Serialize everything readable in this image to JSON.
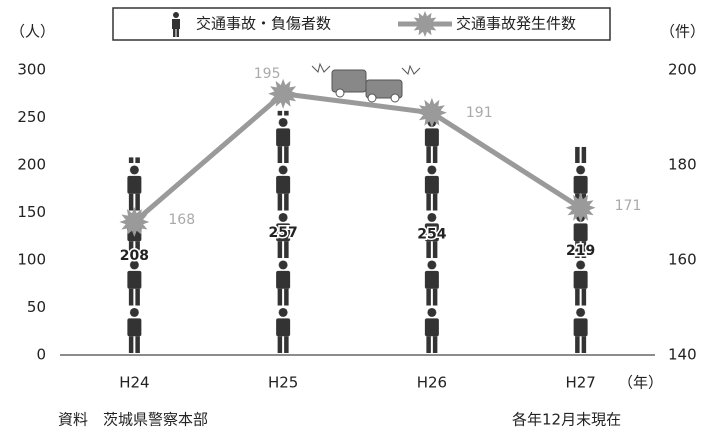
{
  "chart_data": {
    "type": "combo",
    "categories": [
      "H24",
      "H25",
      "H26",
      "H27"
    ],
    "series": [
      {
        "name": "交通事故・負傷者数",
        "type": "pictograph",
        "color": "#333333",
        "values": [
          208,
          257,
          254,
          219
        ]
      },
      {
        "name": "交通事故発生件数",
        "type": "line",
        "axis": "y2",
        "color": "#9a9a9a",
        "values": [
          168,
          195,
          191,
          171
        ]
      }
    ],
    "ylim": [
      0,
      300
    ],
    "yticks": [
      0,
      50,
      100,
      150,
      200,
      250,
      300
    ],
    "y2lim": [
      140,
      200
    ],
    "y2ticks": [
      140,
      160,
      180,
      200
    ],
    "y_label": "（人）",
    "y2_label": "（件）",
    "x_label": "（年）",
    "grid": false
  },
  "footer": {
    "source": "資料　茨城県警察本部",
    "note": "各年12月末現在"
  }
}
